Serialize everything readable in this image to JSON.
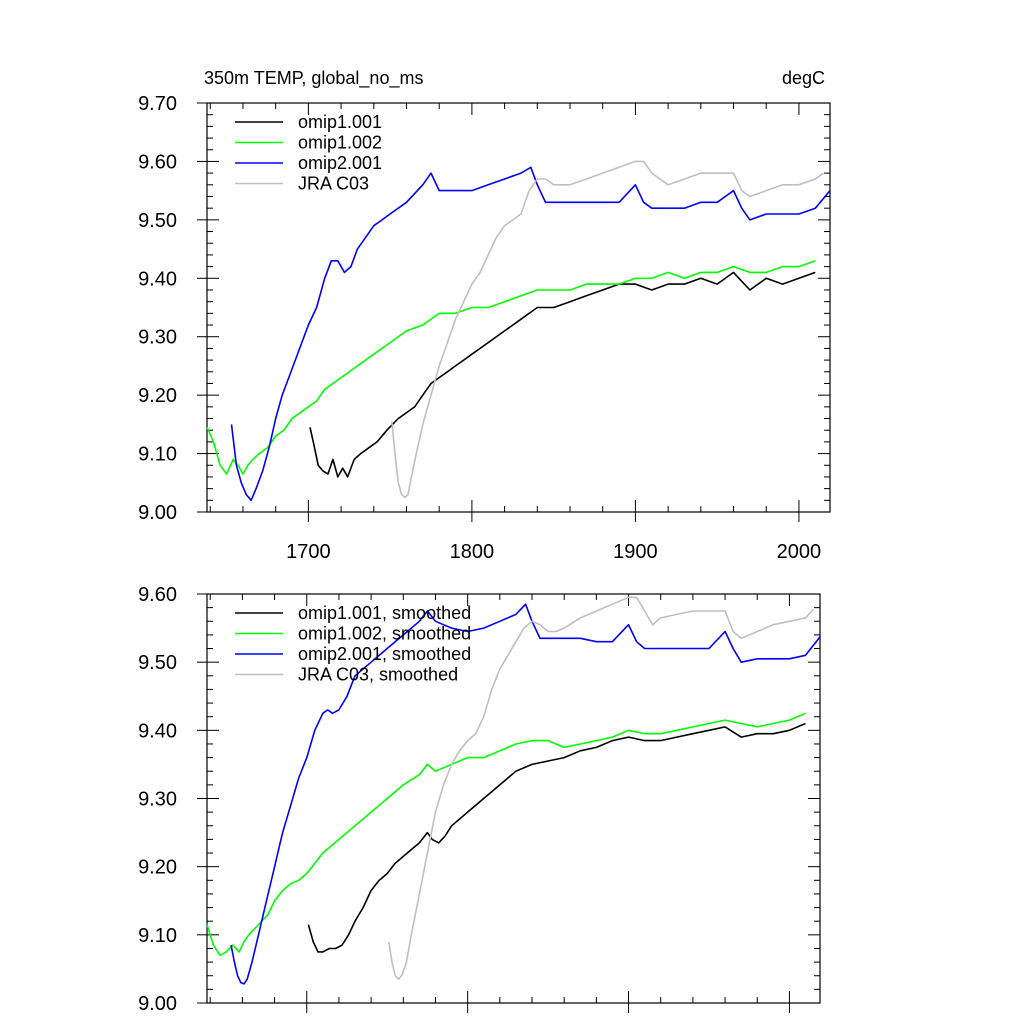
{
  "chart_data": [
    {
      "type": "line",
      "title_left": "350m TEMP, global_no_ms",
      "title_right": "degC",
      "xlabel": "",
      "ylabel": "",
      "xlim": [
        1638,
        2019
      ],
      "ylim": [
        9.0,
        9.7
      ],
      "xticks": [
        "1700",
        "1800",
        "1900",
        "2000"
      ],
      "yticks": [
        "9.00",
        "9.10",
        "9.20",
        "9.30",
        "9.40",
        "9.50",
        "9.60",
        "9.70"
      ],
      "legend_position": "top-left",
      "series": [
        {
          "name": "omip1.001",
          "color": "#000000",
          "x": [
            1701,
            1703,
            1706,
            1709,
            1712,
            1715,
            1718,
            1721,
            1724,
            1728,
            1732,
            1737,
            1742,
            1748,
            1755,
            1760,
            1765,
            1770,
            1775,
            1780,
            1785,
            1790,
            1795,
            1800,
            1810,
            1820,
            1830,
            1840,
            1850,
            1860,
            1870,
            1880,
            1890,
            1900,
            1910,
            1920,
            1930,
            1940,
            1950,
            1960,
            1970,
            1980,
            1990,
            2000,
            2010
          ],
          "y": [
            9.145,
            9.12,
            9.08,
            9.07,
            9.065,
            9.09,
            9.06,
            9.075,
            9.06,
            9.09,
            9.1,
            9.11,
            9.12,
            9.14,
            9.16,
            9.17,
            9.18,
            9.2,
            9.22,
            9.23,
            9.24,
            9.25,
            9.26,
            9.27,
            9.29,
            9.31,
            9.33,
            9.35,
            9.35,
            9.36,
            9.37,
            9.38,
            9.39,
            9.39,
            9.38,
            9.39,
            9.39,
            9.4,
            9.39,
            9.41,
            9.38,
            9.4,
            9.39,
            9.4,
            9.41
          ]
        },
        {
          "name": "omip1.002",
          "color": "#00ff00",
          "x": [
            1638,
            1642,
            1646,
            1650,
            1654,
            1657,
            1660,
            1663,
            1666,
            1670,
            1675,
            1680,
            1685,
            1690,
            1695,
            1700,
            1705,
            1710,
            1720,
            1730,
            1740,
            1750,
            1760,
            1770,
            1780,
            1790,
            1800,
            1810,
            1820,
            1830,
            1840,
            1850,
            1860,
            1870,
            1880,
            1890,
            1900,
            1910,
            1920,
            1930,
            1940,
            1950,
            1960,
            1970,
            1980,
            1990,
            2000,
            2010
          ],
          "y": [
            9.145,
            9.12,
            9.08,
            9.065,
            9.09,
            9.08,
            9.065,
            9.08,
            9.09,
            9.1,
            9.11,
            9.13,
            9.14,
            9.16,
            9.17,
            9.18,
            9.19,
            9.21,
            9.23,
            9.25,
            9.27,
            9.29,
            9.31,
            9.32,
            9.34,
            9.34,
            9.35,
            9.35,
            9.36,
            9.37,
            9.38,
            9.38,
            9.38,
            9.39,
            9.39,
            9.39,
            9.4,
            9.4,
            9.41,
            9.4,
            9.41,
            9.41,
            9.42,
            9.41,
            9.41,
            9.42,
            9.42,
            9.43
          ]
        },
        {
          "name": "omip2.001",
          "color": "#0000ff",
          "x": [
            1653,
            1656,
            1659,
            1662,
            1665,
            1668,
            1672,
            1676,
            1680,
            1684,
            1688,
            1692,
            1696,
            1700,
            1705,
            1710,
            1714,
            1718,
            1722,
            1726,
            1730,
            1735,
            1740,
            1745,
            1750,
            1760,
            1770,
            1775,
            1780,
            1790,
            1800,
            1810,
            1820,
            1830,
            1836,
            1840,
            1845,
            1850,
            1860,
            1870,
            1880,
            1890,
            1900,
            1905,
            1910,
            1920,
            1930,
            1940,
            1950,
            1960,
            1965,
            1970,
            1980,
            1990,
            2000,
            2010,
            2019
          ],
          "y": [
            9.15,
            9.08,
            9.05,
            9.03,
            9.02,
            9.04,
            9.07,
            9.11,
            9.16,
            9.2,
            9.23,
            9.26,
            9.29,
            9.32,
            9.35,
            9.4,
            9.43,
            9.43,
            9.41,
            9.42,
            9.45,
            9.47,
            9.49,
            9.5,
            9.51,
            9.53,
            9.56,
            9.58,
            9.55,
            9.55,
            9.55,
            9.56,
            9.57,
            9.58,
            9.59,
            9.56,
            9.53,
            9.53,
            9.53,
            9.53,
            9.53,
            9.53,
            9.56,
            9.53,
            9.52,
            9.52,
            9.52,
            9.53,
            9.53,
            9.55,
            9.52,
            9.5,
            9.51,
            9.51,
            9.51,
            9.52,
            9.55
          ]
        },
        {
          "name": "JRA C03",
          "color": "#bfbfbf",
          "x": [
            1751,
            1753,
            1755,
            1757,
            1759,
            1761,
            1763,
            1766,
            1770,
            1775,
            1780,
            1785,
            1790,
            1795,
            1800,
            1805,
            1810,
            1815,
            1820,
            1825,
            1830,
            1835,
            1840,
            1845,
            1850,
            1860,
            1870,
            1880,
            1890,
            1900,
            1905,
            1910,
            1920,
            1930,
            1940,
            1950,
            1960,
            1965,
            1970,
            1980,
            1990,
            2000,
            2010,
            2015
          ],
          "y": [
            9.155,
            9.1,
            9.05,
            9.03,
            9.025,
            9.03,
            9.06,
            9.1,
            9.15,
            9.2,
            9.25,
            9.29,
            9.33,
            9.36,
            9.39,
            9.41,
            9.44,
            9.47,
            9.49,
            9.5,
            9.51,
            9.55,
            9.57,
            9.57,
            9.56,
            9.56,
            9.57,
            9.58,
            9.59,
            9.6,
            9.6,
            9.58,
            9.56,
            9.57,
            9.58,
            9.58,
            9.58,
            9.55,
            9.54,
            9.55,
            9.56,
            9.56,
            9.57,
            9.58
          ]
        }
      ]
    },
    {
      "type": "line",
      "xlabel": "",
      "ylabel": "",
      "xlim": [
        1638,
        2019
      ],
      "ylim": [
        9.0,
        9.6
      ],
      "xticks": [],
      "yticks": [
        "9.00",
        "9.10",
        "9.20",
        "9.30",
        "9.40",
        "9.50",
        "9.60"
      ],
      "legend_position": "top-left",
      "series": [
        {
          "name": "omip1.001, smoothed",
          "color": "#000000",
          "x": [
            1701,
            1704,
            1707,
            1710,
            1714,
            1718,
            1722,
            1726,
            1730,
            1735,
            1740,
            1745,
            1750,
            1755,
            1760,
            1765,
            1770,
            1775,
            1778,
            1782,
            1786,
            1790,
            1795,
            1800,
            1810,
            1820,
            1830,
            1840,
            1850,
            1860,
            1870,
            1880,
            1890,
            1900,
            1910,
            1920,
            1930,
            1940,
            1950,
            1960,
            1970,
            1980,
            1990,
            2000,
            2010
          ],
          "y": [
            9.115,
            9.09,
            9.075,
            9.075,
            9.08,
            9.08,
            9.085,
            9.1,
            9.12,
            9.14,
            9.165,
            9.18,
            9.19,
            9.205,
            9.215,
            9.225,
            9.235,
            9.25,
            9.24,
            9.235,
            9.245,
            9.26,
            9.27,
            9.28,
            9.3,
            9.32,
            9.34,
            9.35,
            9.355,
            9.36,
            9.37,
            9.375,
            9.385,
            9.39,
            9.385,
            9.385,
            9.39,
            9.395,
            9.4,
            9.405,
            9.39,
            9.395,
            9.395,
            9.4,
            9.41
          ]
        },
        {
          "name": "omip1.002, smoothed",
          "color": "#00ff00",
          "x": [
            1638,
            1642,
            1646,
            1650,
            1654,
            1658,
            1661,
            1664,
            1668,
            1672,
            1676,
            1680,
            1685,
            1690,
            1695,
            1700,
            1705,
            1710,
            1720,
            1730,
            1740,
            1750,
            1760,
            1770,
            1775,
            1780,
            1790,
            1800,
            1810,
            1820,
            1830,
            1840,
            1850,
            1860,
            1870,
            1880,
            1890,
            1900,
            1910,
            1920,
            1930,
            1940,
            1950,
            1960,
            1970,
            1980,
            1990,
            2000,
            2010
          ],
          "y": [
            9.115,
            9.085,
            9.07,
            9.075,
            9.085,
            9.075,
            9.09,
            9.1,
            9.11,
            9.12,
            9.13,
            9.15,
            9.165,
            9.175,
            9.18,
            9.19,
            9.205,
            9.22,
            9.24,
            9.26,
            9.28,
            9.3,
            9.32,
            9.335,
            9.35,
            9.34,
            9.35,
            9.36,
            9.36,
            9.37,
            9.38,
            9.385,
            9.385,
            9.375,
            9.38,
            9.385,
            9.39,
            9.4,
            9.395,
            9.395,
            9.4,
            9.405,
            9.41,
            9.415,
            9.41,
            9.405,
            9.41,
            9.415,
            9.425
          ]
        },
        {
          "name": "omip2.001, smoothed",
          "color": "#0000ff",
          "x": [
            1653,
            1655,
            1657,
            1659,
            1661,
            1663,
            1666,
            1670,
            1675,
            1680,
            1685,
            1690,
            1695,
            1700,
            1705,
            1710,
            1713,
            1716,
            1720,
            1725,
            1730,
            1740,
            1750,
            1760,
            1770,
            1775,
            1780,
            1790,
            1800,
            1810,
            1820,
            1830,
            1836,
            1840,
            1845,
            1850,
            1860,
            1870,
            1880,
            1890,
            1900,
            1905,
            1910,
            1920,
            1930,
            1940,
            1950,
            1960,
            1965,
            1970,
            1980,
            1990,
            2000,
            2010,
            2019
          ],
          "y": [
            9.085,
            9.06,
            9.04,
            9.03,
            9.028,
            9.035,
            9.06,
            9.1,
            9.15,
            9.2,
            9.25,
            9.29,
            9.33,
            9.36,
            9.4,
            9.425,
            9.43,
            9.425,
            9.43,
            9.45,
            9.48,
            9.5,
            9.52,
            9.54,
            9.56,
            9.575,
            9.56,
            9.55,
            9.545,
            9.55,
            9.56,
            9.57,
            9.585,
            9.56,
            9.535,
            9.535,
            9.535,
            9.535,
            9.53,
            9.53,
            9.555,
            9.53,
            9.52,
            9.52,
            9.52,
            9.52,
            9.52,
            9.545,
            9.52,
            9.5,
            9.505,
            9.505,
            9.505,
            9.51,
            9.537
          ]
        },
        {
          "name": "JRA C03, smoothed",
          "color": "#bfbfbf",
          "x": [
            1751,
            1753,
            1755,
            1757,
            1759,
            1762,
            1765,
            1770,
            1775,
            1780,
            1785,
            1790,
            1795,
            1800,
            1805,
            1810,
            1815,
            1820,
            1825,
            1830,
            1835,
            1840,
            1845,
            1850,
            1855,
            1860,
            1870,
            1880,
            1890,
            1900,
            1905,
            1910,
            1915,
            1920,
            1930,
            1940,
            1950,
            1960,
            1965,
            1970,
            1980,
            1990,
            2000,
            2010,
            2015
          ],
          "y": [
            9.09,
            9.06,
            9.04,
            9.035,
            9.04,
            9.06,
            9.1,
            9.16,
            9.22,
            9.28,
            9.32,
            9.35,
            9.37,
            9.385,
            9.395,
            9.42,
            9.46,
            9.49,
            9.51,
            9.53,
            9.55,
            9.56,
            9.555,
            9.545,
            9.545,
            9.55,
            9.565,
            9.575,
            9.585,
            9.595,
            9.595,
            9.575,
            9.555,
            9.565,
            9.57,
            9.575,
            9.575,
            9.575,
            9.545,
            9.535,
            9.545,
            9.555,
            9.56,
            9.565,
            9.578
          ]
        }
      ]
    }
  ]
}
